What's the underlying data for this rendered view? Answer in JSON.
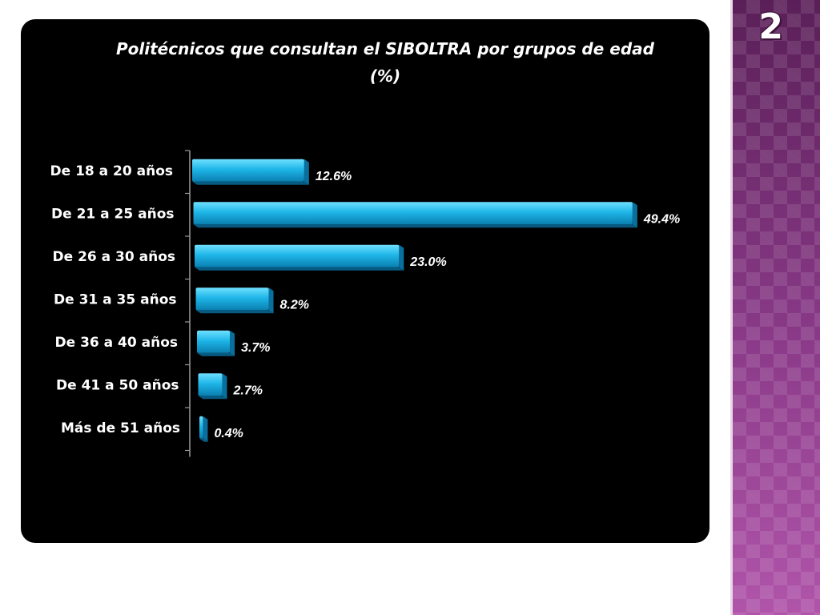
{
  "slide_number": "2",
  "chart_data": {
    "type": "bar",
    "orientation": "horizontal",
    "title": "Politécnicos que consultan el SIBOLTRA por grupos de edad (%)",
    "categories": [
      "De 18 a 20 años",
      "De 21 a 25 años",
      "De 26 a 30 años",
      "De 31 a 35 años",
      "De 36 a 40 años",
      "De 41 a 50 años",
      "Más de 51 años"
    ],
    "values": [
      12.6,
      49.4,
      23.0,
      8.2,
      3.7,
      2.7,
      0.4
    ],
    "value_labels": [
      "12.6%",
      "49.4%",
      "23.0%",
      "8.2%",
      "3.7%",
      "2.7%",
      "0.4%"
    ],
    "bar_color": "#1fb6e8",
    "background_color": "#000000",
    "xlim": [
      0,
      50
    ],
    "grid": false,
    "legend": "none"
  }
}
